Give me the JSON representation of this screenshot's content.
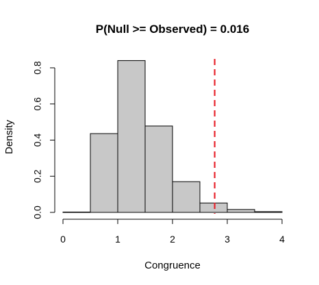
{
  "chart_data": {
    "type": "histogram",
    "title": "P(Null >= Observed) = 0.016",
    "xlabel": "Congruence",
    "ylabel": "Density",
    "xlim": [
      0,
      4
    ],
    "ylim": [
      0,
      0.85
    ],
    "x_ticks": [
      0,
      1,
      2,
      3,
      4
    ],
    "x_tick_labels": [
      "0",
      "1",
      "2",
      "3",
      "4"
    ],
    "y_ticks": [
      0.0,
      0.2,
      0.4,
      0.6,
      0.8
    ],
    "y_tick_labels": [
      "0.0",
      "0.2",
      "0.4",
      "0.6",
      "0.8"
    ],
    "bins": [
      {
        "start": 0.0,
        "end": 0.5,
        "density": 0.002
      },
      {
        "start": 0.5,
        "end": 1.0,
        "density": 0.436
      },
      {
        "start": 1.0,
        "end": 1.5,
        "density": 0.84
      },
      {
        "start": 1.5,
        "end": 2.0,
        "density": 0.478
      },
      {
        "start": 2.0,
        "end": 2.5,
        "density": 0.17
      },
      {
        "start": 2.5,
        "end": 3.0,
        "density": 0.052
      },
      {
        "start": 3.0,
        "end": 3.5,
        "density": 0.016
      },
      {
        "start": 3.5,
        "end": 4.0,
        "density": 0.004
      }
    ],
    "reference_line": {
      "x": 2.77,
      "color": "#e8212a",
      "style": "dashed"
    },
    "colors": {
      "bar_fill": "#c8c8c8",
      "bar_stroke": "#000000"
    },
    "grid": false
  }
}
